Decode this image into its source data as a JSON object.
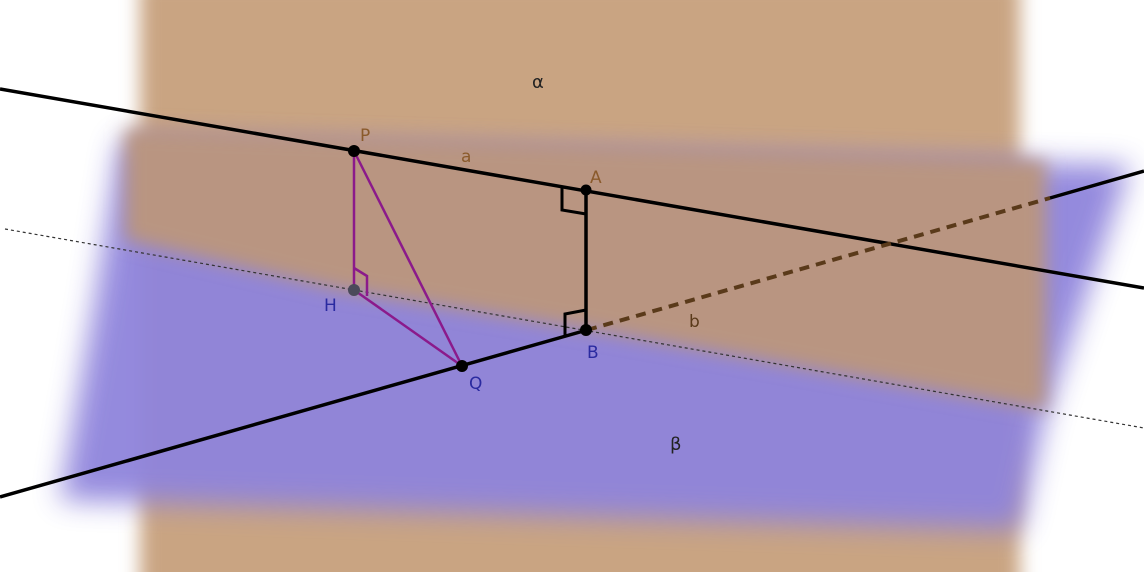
{
  "figure": {
    "planes": {
      "alpha": {
        "label": "α",
        "color": "#c9a482",
        "text_color": "#222222"
      },
      "beta": {
        "label": "β",
        "color": "#8f84dc",
        "text_color": "#222222"
      }
    },
    "lines": {
      "a": {
        "label": "a",
        "label_color": "#8a5a2b",
        "color": "#000000"
      },
      "b": {
        "label": "b",
        "label_color": "#5a3a1a",
        "dash_color": "#5a3a1a"
      }
    },
    "points": {
      "P": {
        "label": "P",
        "label_color": "#8a5a2b"
      },
      "A": {
        "label": "A",
        "label_color": "#8a5a2b"
      },
      "H": {
        "label": "H",
        "label_color": "#2a2aa0"
      },
      "Q": {
        "label": "Q",
        "label_color": "#2a2aa0"
      },
      "B": {
        "label": "B",
        "label_color": "#2a2aa0"
      }
    },
    "colors": {
      "triangle": "#8b1a8b",
      "segment_AB": "#000000",
      "intersection_line": "#333333"
    }
  }
}
